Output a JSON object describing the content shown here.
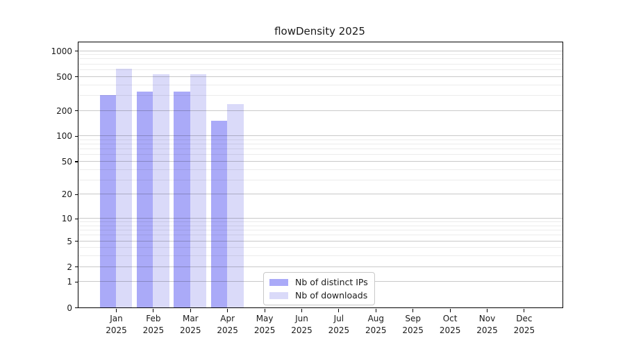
{
  "chart_data": {
    "type": "bar",
    "title": "flowDensity 2025",
    "categories": [
      "Jan 2025",
      "Feb 2025",
      "Mar 2025",
      "Apr 2025",
      "May 2025",
      "Jun 2025",
      "Jul 2025",
      "Aug 2025",
      "Sep 2025",
      "Oct 2025",
      "Nov 2025",
      "Dec 2025"
    ],
    "series": [
      {
        "name": "Nb of distinct IPs",
        "color": "#aaaaf8",
        "values": [
          305,
          335,
          335,
          150,
          0,
          0,
          0,
          0,
          0,
          0,
          0,
          0
        ]
      },
      {
        "name": "Nb of downloads",
        "color": "#dadaf9",
        "values": [
          620,
          535,
          535,
          235,
          0,
          0,
          0,
          0,
          0,
          0,
          0,
          0
        ]
      }
    ],
    "xlabel": "",
    "ylabel": "",
    "y_scale": "symlog",
    "y_ticks": [
      0,
      1,
      2,
      5,
      10,
      20,
      50,
      100,
      200,
      500,
      1000
    ],
    "ylim": [
      0,
      1000
    ],
    "grid": true,
    "legend_position": "lower center"
  },
  "colors": {
    "ips_bar": "#aaaaf8",
    "downloads_bar": "#dadaf9",
    "axis": "#000000"
  }
}
